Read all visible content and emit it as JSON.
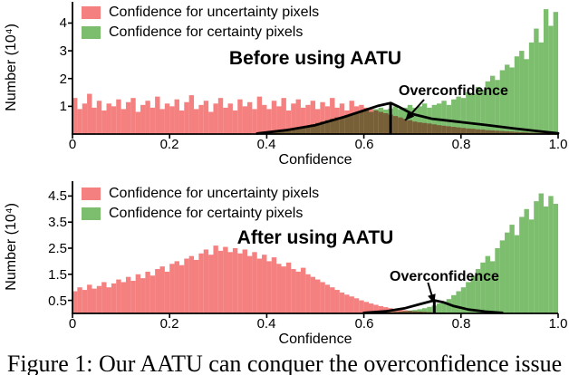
{
  "figure": {
    "caption": "Figure 1: Our AATU can conquer the overconfidence issue"
  },
  "colors": {
    "uncertainty": "#F58080",
    "certainty": "#7CBE6E",
    "axis": "#000000",
    "overlay": "#000000"
  },
  "chart_data": [
    {
      "type": "bar",
      "title": "Before using AATU",
      "xlabel": "Confidence",
      "ylabel": "Number (10⁴)",
      "xlim": [
        0,
        1.0
      ],
      "ylim": [
        0,
        4.7
      ],
      "x_ticks": [
        0,
        0.2,
        0.4,
        0.6,
        0.8,
        1.0
      ],
      "x_tick_labels": [
        "0",
        "0.2",
        "0.4",
        "0.6",
        "0.8",
        "1.0"
      ],
      "y_ticks": [
        1,
        2,
        3,
        4
      ],
      "y_tick_labels": [
        "1",
        "2",
        "3",
        "4"
      ],
      "legend": [
        {
          "label": "Confidence for uncertainty pixels",
          "color": "#F58080"
        },
        {
          "label": "Confidence for certainty pixels",
          "color": "#7CBE6E"
        }
      ],
      "annotation": {
        "label": "Overconfidence",
        "arrow_from": [
          0.724,
          1.24
        ],
        "arrow_tip": [
          0.685,
          0.49
        ]
      },
      "series": [
        {
          "name": "uncertainty",
          "color": "#F58080",
          "start": 0,
          "bin_width": 0.01,
          "blend": false,
          "heights": [
            1.3,
            0.9,
            1.1,
            1.45,
            0.95,
            1.2,
            0.85,
            1.1,
            1.0,
            1.25,
            0.9,
            1.15,
            1.3,
            0.8,
            1.05,
            1.2,
            0.95,
            1.35,
            0.9,
            1.1,
            1.0,
            1.25,
            0.85,
            1.15,
            1.4,
            0.9,
            1.05,
            1.2,
            0.8,
            1.1,
            1.3,
            0.95,
            1.1,
            0.85,
            1.25,
            1.0,
            1.15,
            0.9,
            1.35,
            1.05,
            0.9,
            1.2,
            1.0,
            1.3,
            0.85,
            1.1,
            1.25,
            0.95,
            1.05,
            1.2,
            0.9,
            1.15,
            1.0,
            1.3,
            0.95,
            1.1,
            0.85,
            1.2,
            1.0,
            1.05,
            0.95,
            0.9,
            0.85,
            0.8,
            0.75,
            0.7,
            0.65,
            0.6,
            0.55,
            0.5,
            0.45,
            0.42,
            0.4,
            0.38,
            0.35,
            0.32,
            0.3,
            0.28,
            0.26,
            0.24,
            0.22,
            0.2,
            0.19,
            0.17,
            0.16,
            0.14,
            0.13,
            0.12,
            0.11,
            0.1,
            0.09,
            0.08,
            0.07,
            0.06,
            0.05,
            0.05,
            0.04,
            0.04,
            0.03,
            0.03
          ]
        },
        {
          "name": "certainty",
          "color": "#7CBE6E",
          "start": 0.4,
          "bin_width": 0.01,
          "blend": true,
          "heights": [
            0.05,
            0.08,
            0.1,
            0.12,
            0.15,
            0.18,
            0.22,
            0.25,
            0.3,
            0.35,
            0.4,
            0.45,
            0.5,
            0.55,
            0.6,
            0.62,
            0.68,
            0.72,
            0.78,
            0.82,
            0.85,
            0.8,
            0.9,
            0.95,
            0.88,
            0.92,
            1.0,
            0.9,
            0.95,
            1.05,
            0.95,
            1.0,
            1.1,
            0.95,
            1.05,
            1.1,
            1.2,
            1.05,
            1.25,
            1.35,
            1.3,
            1.5,
            1.45,
            1.7,
            1.6,
            1.9,
            2.1,
            1.95,
            2.3,
            2.5,
            2.4,
            2.8,
            3.0,
            2.7,
            3.3,
            3.8,
            3.3,
            4.5,
            3.9,
            4.4
          ]
        }
      ],
      "overlay_curve": [
        [
          0.38,
          0.02
        ],
        [
          0.44,
          0.14
        ],
        [
          0.5,
          0.32
        ],
        [
          0.56,
          0.62
        ],
        [
          0.6,
          0.85
        ],
        [
          0.63,
          1.02
        ],
        [
          0.655,
          1.12
        ],
        [
          0.67,
          1.0
        ],
        [
          0.7,
          0.72
        ],
        [
          0.74,
          0.55
        ],
        [
          0.79,
          0.45
        ],
        [
          0.85,
          0.33
        ],
        [
          0.91,
          0.2
        ],
        [
          0.96,
          0.1
        ],
        [
          1.0,
          0.03
        ]
      ],
      "overlay_vline": {
        "x": 0.655,
        "height": 1.12
      }
    },
    {
      "type": "bar",
      "title": "After using AATU",
      "xlabel": "Confidence",
      "ylabel": "Number (10⁴)",
      "xlim": [
        0,
        1.0
      ],
      "ylim": [
        0,
        5.0
      ],
      "x_ticks": [
        0,
        0.2,
        0.4,
        0.6,
        0.8,
        1.0
      ],
      "x_tick_labels": [
        "0",
        "0.2",
        "0.4",
        "0.6",
        "0.8",
        "1.0"
      ],
      "y_ticks": [
        0.5,
        1.5,
        2.5,
        3.5,
        4.5
      ],
      "y_tick_labels": [
        "0.5",
        "1.5",
        "2.5",
        "3.5",
        "4.5"
      ],
      "legend": [
        {
          "label": "Confidence for uncertainty pixels",
          "color": "#F58080"
        },
        {
          "label": "Confidence for certainty pixels",
          "color": "#7CBE6E"
        }
      ],
      "annotation": {
        "label": "Overconfidence",
        "arrow_from": [
          0.732,
          1.18
        ],
        "arrow_tip": [
          0.745,
          0.38
        ]
      },
      "series": [
        {
          "name": "uncertainty",
          "color": "#F58080",
          "start": 0,
          "bin_width": 0.01,
          "blend": false,
          "heights": [
            0.85,
            1.0,
            0.9,
            1.1,
            0.95,
            1.05,
            1.2,
            1.0,
            1.15,
            1.3,
            1.2,
            1.4,
            1.25,
            1.5,
            1.35,
            1.6,
            1.45,
            1.7,
            1.8,
            1.6,
            1.9,
            2.0,
            1.85,
            2.1,
            2.2,
            2.05,
            2.3,
            2.45,
            2.25,
            2.6,
            2.4,
            2.55,
            2.35,
            2.5,
            2.3,
            2.45,
            2.2,
            2.35,
            2.1,
            2.25,
            2.0,
            2.15,
            1.9,
            1.8,
            1.95,
            1.7,
            1.6,
            1.75,
            1.5,
            1.4,
            1.3,
            1.2,
            1.1,
            1.0,
            0.9,
            0.8,
            0.72,
            0.65,
            0.58,
            0.5,
            0.44,
            0.38,
            0.33,
            0.28,
            0.24,
            0.2,
            0.17,
            0.14,
            0.12,
            0.1,
            0.08,
            0.07,
            0.06,
            0.05,
            0.04,
            0.03,
            0.03,
            0.02,
            0.02,
            0.02,
            0.01,
            0.01,
            0.01,
            0.01,
            0.01,
            0,
            0,
            0,
            0,
            0,
            0,
            0,
            0,
            0,
            0,
            0,
            0,
            0,
            0,
            0
          ]
        },
        {
          "name": "certainty",
          "color": "#7CBE6E",
          "start": 0.6,
          "bin_width": 0.01,
          "blend": true,
          "heights": [
            0.02,
            0.02,
            0.03,
            0.03,
            0.04,
            0.05,
            0.06,
            0.07,
            0.09,
            0.11,
            0.13,
            0.16,
            0.2,
            0.25,
            0.3,
            0.38,
            0.45,
            0.55,
            0.7,
            0.85,
            1.0,
            1.2,
            1.45,
            1.7,
            1.95,
            2.2,
            2.0,
            2.5,
            2.8,
            3.1,
            3.4,
            3.0,
            3.7,
            4.0,
            3.6,
            4.3,
            4.6,
            4.1,
            4.5,
            4.2
          ]
        }
      ],
      "overlay_curve": [
        [
          0.6,
          0.02
        ],
        [
          0.645,
          0.08
        ],
        [
          0.685,
          0.2
        ],
        [
          0.715,
          0.35
        ],
        [
          0.745,
          0.5
        ],
        [
          0.765,
          0.42
        ],
        [
          0.785,
          0.28
        ],
        [
          0.815,
          0.15
        ],
        [
          0.85,
          0.07
        ],
        [
          0.885,
          0.02
        ]
      ],
      "overlay_vline": {
        "x": 0.745,
        "height": 0.5
      }
    }
  ]
}
